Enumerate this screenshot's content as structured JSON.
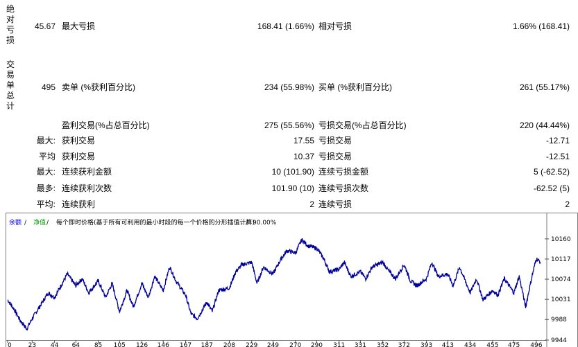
{
  "report": {
    "section_absolute_drawdown": "绝对亏损",
    "section_total_trades": "交易单总计",
    "rows": [
      {
        "v1": "45.67",
        "l1": "最大亏损",
        "v2": "168.41 (1.66%)",
        "l2": "相对亏损",
        "v3": "1.66% (168.41)"
      },
      {
        "v1": "495",
        "l1": "卖单 (%获利百分比)",
        "v2": "234 (55.98%)",
        "l2": "买单 (%获利百分比)",
        "v3": "261 (55.17%)"
      },
      {
        "v1": "",
        "l1": "盈利交易(%占总百分比)",
        "v2": "275 (55.56%)",
        "l2": "亏损交易(%占总百分比)",
        "v3": "220 (44.44%)"
      },
      {
        "v1": "最大:",
        "l1": "获利交易",
        "v2": "17.55",
        "l2": "亏损交易",
        "v3": "-12.71"
      },
      {
        "v1": "平均",
        "l1": "获利交易",
        "v2": "10.37",
        "l2": "亏损交易",
        "v3": "-12.51"
      },
      {
        "v1": "最大:",
        "l1": "连续获利金额",
        "v2": "10 (101.90)",
        "l2": "连续亏损金额",
        "v3": "5 (-62.52)"
      },
      {
        "v1": "最多:",
        "l1": "连续获利次数",
        "v2": "101.90 (10)",
        "l2": "连续亏损次数",
        "v3": "-62.52 (5)"
      },
      {
        "v1": "平均:",
        "l1": "连续获利",
        "v2": "2",
        "l2": "连续亏损",
        "v3": "2"
      }
    ]
  },
  "chart_data": {
    "type": "line",
    "legend": {
      "balance": "余额",
      "sep1": " / ",
      "equity": "净值",
      "sep2": " / ",
      "model": "每个即时价格(基于所有可利用的最小时段的每一个价格的分形插值计算)",
      "sep3": " / ",
      "quality": "90.00%"
    },
    "colors": {
      "balance": "#0000cc",
      "equity": "#00aa00",
      "line": "#000099",
      "legend_blue": "#0000ff",
      "legend_green": "#00a000"
    },
    "xlim": [
      0,
      500
    ],
    "ylim": [
      9944,
      10182
    ],
    "x_ticks": [
      0,
      23,
      44,
      64,
      85,
      105,
      126,
      146,
      167,
      187,
      208,
      229,
      249,
      270,
      290,
      311,
      331,
      352,
      372,
      393,
      413,
      434,
      455,
      475,
      496
    ],
    "y_ticks": [
      9944,
      9988,
      10031,
      10074,
      10117,
      10160
    ],
    "series": [
      {
        "x": [
          0,
          6,
          12,
          18,
          23,
          30,
          38,
          44,
          50,
          56,
          64,
          70,
          76,
          85,
          92,
          98,
          105,
          112,
          118,
          126,
          132,
          138,
          146,
          152,
          158,
          167,
          172,
          178,
          187,
          192,
          198,
          208,
          214,
          220,
          229,
          234,
          240,
          249,
          256,
          262,
          270,
          276,
          282,
          290,
          296,
          302,
          311,
          316,
          322,
          331,
          336,
          342,
          352,
          358,
          364,
          372,
          378,
          384,
          393,
          398,
          404,
          413,
          418,
          424,
          434,
          440,
          446,
          455,
          460,
          466,
          475,
          480,
          486,
          492,
          496,
          500
        ],
        "y": [
          10030,
          10010,
          9985,
          9968,
          9990,
          10015,
          10045,
          10035,
          10060,
          10085,
          10060,
          10075,
          10045,
          10070,
          10035,
          10065,
          10005,
          10050,
          10015,
          10065,
          10035,
          10080,
          10050,
          10100,
          10070,
          10040,
          10000,
          9990,
          10025,
          10005,
          10050,
          10055,
          10090,
          10105,
          10110,
          10065,
          10100,
          10085,
          10115,
          10135,
          10130,
          10158,
          10145,
          10140,
          10120,
          10090,
          10095,
          10110,
          10080,
          10090,
          10075,
          10100,
          10110,
          10090,
          10075,
          10105,
          10070,
          10060,
          10075,
          10110,
          10080,
          10085,
          10060,
          10100,
          10045,
          10075,
          10030,
          10050,
          10040,
          10075,
          10045,
          10080,
          10015,
          10080,
          10118,
          10110
        ]
      }
    ]
  }
}
